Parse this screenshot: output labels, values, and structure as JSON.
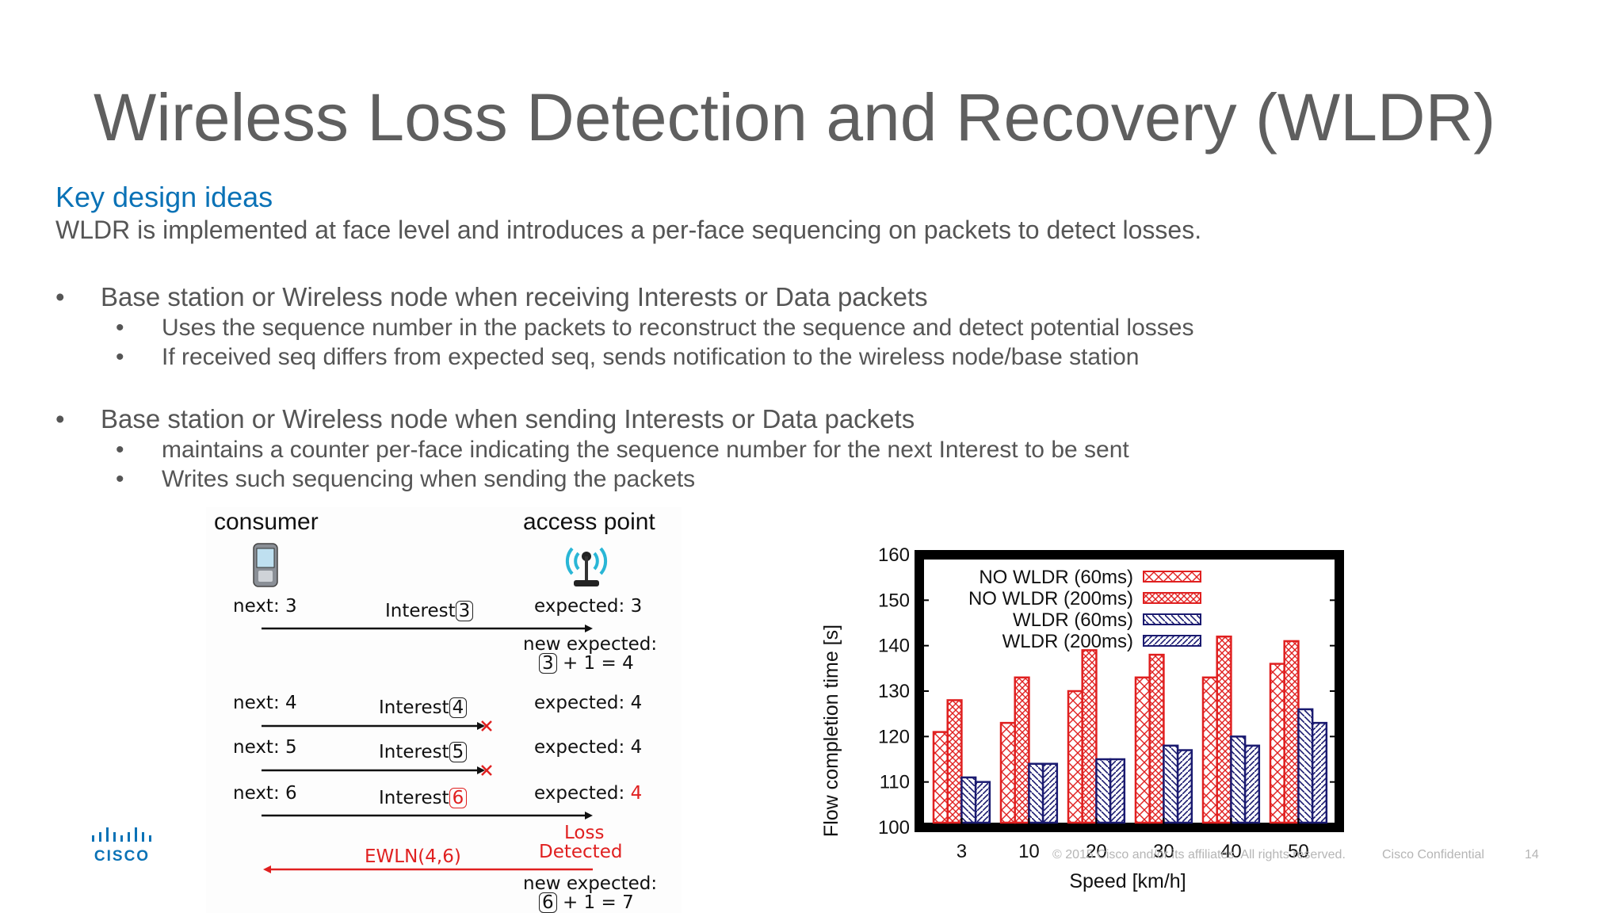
{
  "slide": {
    "title": "Wireless Loss Detection and Recovery (WLDR)",
    "subtitle": "Key design ideas",
    "intro": "WLDR is implemented at face level and introduces a per-face sequencing on packets to detect losses.",
    "bullets": [
      {
        "text": "Base station or Wireless node when receiving Interests or Data packets",
        "sub": [
          "Uses the sequence number in the packets  to reconstruct the sequence and detect potential losses",
          "If received seq differs from expected seq, sends notification to the wireless node/base station"
        ]
      },
      {
        "text": "Base station or Wireless node when sending Interests or Data packets",
        "sub": [
          "maintains a counter per-face indicating the sequence number for the next Interest to be sent",
          "Writes such sequencing when sending the packets"
        ]
      }
    ],
    "bullet_char": "•"
  },
  "diagram": {
    "consumer_label": "consumer",
    "ap_label": "access point",
    "rows": [
      {
        "next": "next: 3",
        "interest": "Interest",
        "num": "3",
        "expected": "expected: 3",
        "lost": false
      },
      {
        "next": "next: 4",
        "interest": "Interest",
        "num": "4",
        "expected": "expected: 4",
        "lost": true
      },
      {
        "next": "next: 5",
        "interest": "Interest",
        "num": "5",
        "expected": "expected: 4",
        "lost": true
      },
      {
        "next": "next: 6",
        "interest": "Interest",
        "num": "6",
        "expected_prefix": "expected: ",
        "expected_value": "4",
        "lost": false
      }
    ],
    "new_expected_1": {
      "label": "new expected:",
      "num": "3",
      "rest": "+ 1 = 4"
    },
    "loss_detected": {
      "line1": "Loss",
      "line2": "Detected"
    },
    "ewln": "EWLN(4,6)",
    "new_expected_2": {
      "label": "new expected:",
      "num": "6",
      "rest": "+ 1 = 7"
    },
    "colors": {
      "red": "#e02020",
      "black": "#111111"
    }
  },
  "chart_data": {
    "type": "bar",
    "categories": [
      "3",
      "10",
      "20",
      "30",
      "40",
      "50"
    ],
    "series": [
      {
        "name": "NO WLDR (60ms)",
        "values": [
          121,
          123,
          130,
          133,
          133,
          136
        ],
        "color": "#e02020",
        "pattern": "cross"
      },
      {
        "name": "NO WLDR (200ms)",
        "values": [
          128,
          133,
          139,
          138,
          142,
          141
        ],
        "color": "#e02020",
        "pattern": "cross-dense"
      },
      {
        "name": "WLDR (60ms)",
        "values": [
          111,
          114,
          115,
          118,
          120,
          126
        ],
        "color": "#1a1a70",
        "pattern": "hatch"
      },
      {
        "name": "WLDR (200ms)",
        "values": [
          110,
          114,
          115,
          117,
          118,
          123
        ],
        "color": "#1a1a70",
        "pattern": "hatch-dense"
      }
    ],
    "xlabel": "Speed [km/h]",
    "ylabel": "Flow completion time [s]",
    "ylim": [
      100,
      160
    ],
    "yticks": [
      "100",
      "110",
      "120",
      "130",
      "140",
      "150",
      "160"
    ],
    "legend": "top-left",
    "grid": false
  },
  "footer": {
    "copyright": "© 2015  Cisco and/or its affiliates. All rights reserved.",
    "confidential": "Cisco Confidential",
    "page": "14",
    "logo_text": "CISCO"
  }
}
